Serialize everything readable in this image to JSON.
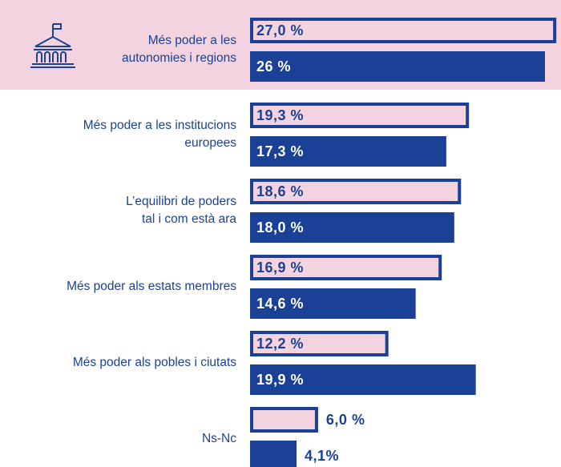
{
  "chart_data": {
    "type": "bar",
    "categories": [
      "Més poder a les\nautonomies i regions",
      "Més poder a les institucions\neuropees",
      "L’equilibri de poders\ntal i com està ara",
      "Més poder als estats membres",
      "Més poder als pobles i ciutats",
      "Ns-Nc"
    ],
    "series": [
      {
        "color": "#f3d3df",
        "border": "#1a4196",
        "values": [
          27.0,
          19.3,
          18.6,
          16.9,
          12.2,
          6.0
        ],
        "value_labels": [
          "27,0 %",
          "19,3 %",
          "18,6 %",
          "16,9 %",
          "12,2 %",
          "6,0 %"
        ]
      },
      {
        "color": "#1a4196",
        "values": [
          26,
          17.3,
          18.0,
          14.6,
          19.9,
          4.1
        ],
        "value_labels": [
          "26 %",
          "17,3 %",
          "18,0 %",
          "14,6 %",
          "19,9 %",
          "4,1%"
        ]
      }
    ],
    "xlim": [
      0,
      27.2
    ],
    "highlight_category": 0
  }
}
